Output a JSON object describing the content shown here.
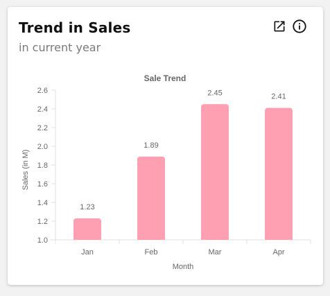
{
  "card": {
    "title": "Trend in Sales",
    "subtitle": "in current year",
    "icons": [
      "open-in-new-icon",
      "info-icon"
    ]
  },
  "colors": {
    "bar_fill": "#ff9fb2",
    "axis_text": "#666666",
    "grid": "#e5e5e5"
  },
  "chart_data": {
    "type": "bar",
    "title": "Sale Trend",
    "xlabel": "Month",
    "ylabel": "Sales (in M)",
    "categories": [
      "Jan",
      "Feb",
      "Mar",
      "Apr"
    ],
    "values": [
      1.23,
      1.89,
      2.45,
      2.41
    ],
    "data_labels": [
      "1.23",
      "1.89",
      "2.45",
      "2.41"
    ],
    "ylim": [
      1.0,
      2.6
    ],
    "yticks": [
      "2.6",
      "2.4",
      "2.2",
      "2.0",
      "1.8",
      "1.6",
      "1.4",
      "1.2",
      "1.0"
    ],
    "grid": false,
    "legend": "none"
  }
}
